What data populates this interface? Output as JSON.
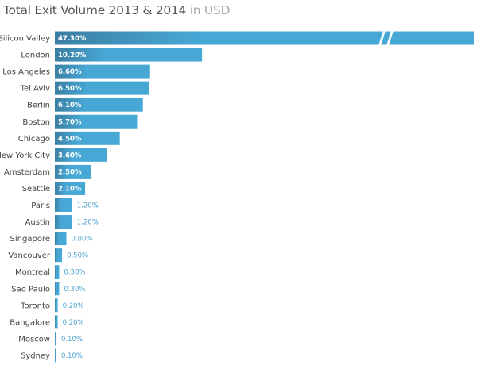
{
  "chart_data": {
    "type": "bar",
    "orientation": "horizontal",
    "title": "Total Exit Volume 2013 & 2014",
    "subtitle": "in USD",
    "categories": [
      "Silicon Valley",
      "London",
      "Los Angeles",
      "Tel Aviv",
      "Berlin",
      "Boston",
      "Chicago",
      "New York City",
      "Amsterdam",
      "Seattle",
      "Paris",
      "Austin",
      "Singapore",
      "Vancouver",
      "Montreal",
      "Sao Paulo",
      "Toronto",
      "Bangalore",
      "Moscow",
      "Sydney"
    ],
    "values": [
      47.3,
      10.2,
      6.6,
      6.5,
      6.1,
      5.7,
      4.5,
      3.6,
      2.5,
      2.1,
      1.2,
      1.2,
      0.8,
      0.5,
      0.3,
      0.3,
      0.2,
      0.2,
      0.1,
      0.1
    ],
    "labels": [
      "47.30%",
      "10.20%",
      "6.60%",
      "6.50%",
      "6.10%",
      "5.70%",
      "4.50%",
      "3.60%",
      "2.50%",
      "2.10%",
      "1.20%",
      "1.20%",
      "0.80%",
      "0.50%",
      "0.30%",
      "0.30%",
      "0.20%",
      "0.20%",
      "0.10%",
      "0.10%"
    ],
    "unit": "%",
    "truncated_bar": "Silicon Valley",
    "grid": false,
    "colors": {
      "bar_start": "#3b7fa3",
      "bar_end": "#47a8d6",
      "outside_label": "#4aa3d0"
    }
  }
}
